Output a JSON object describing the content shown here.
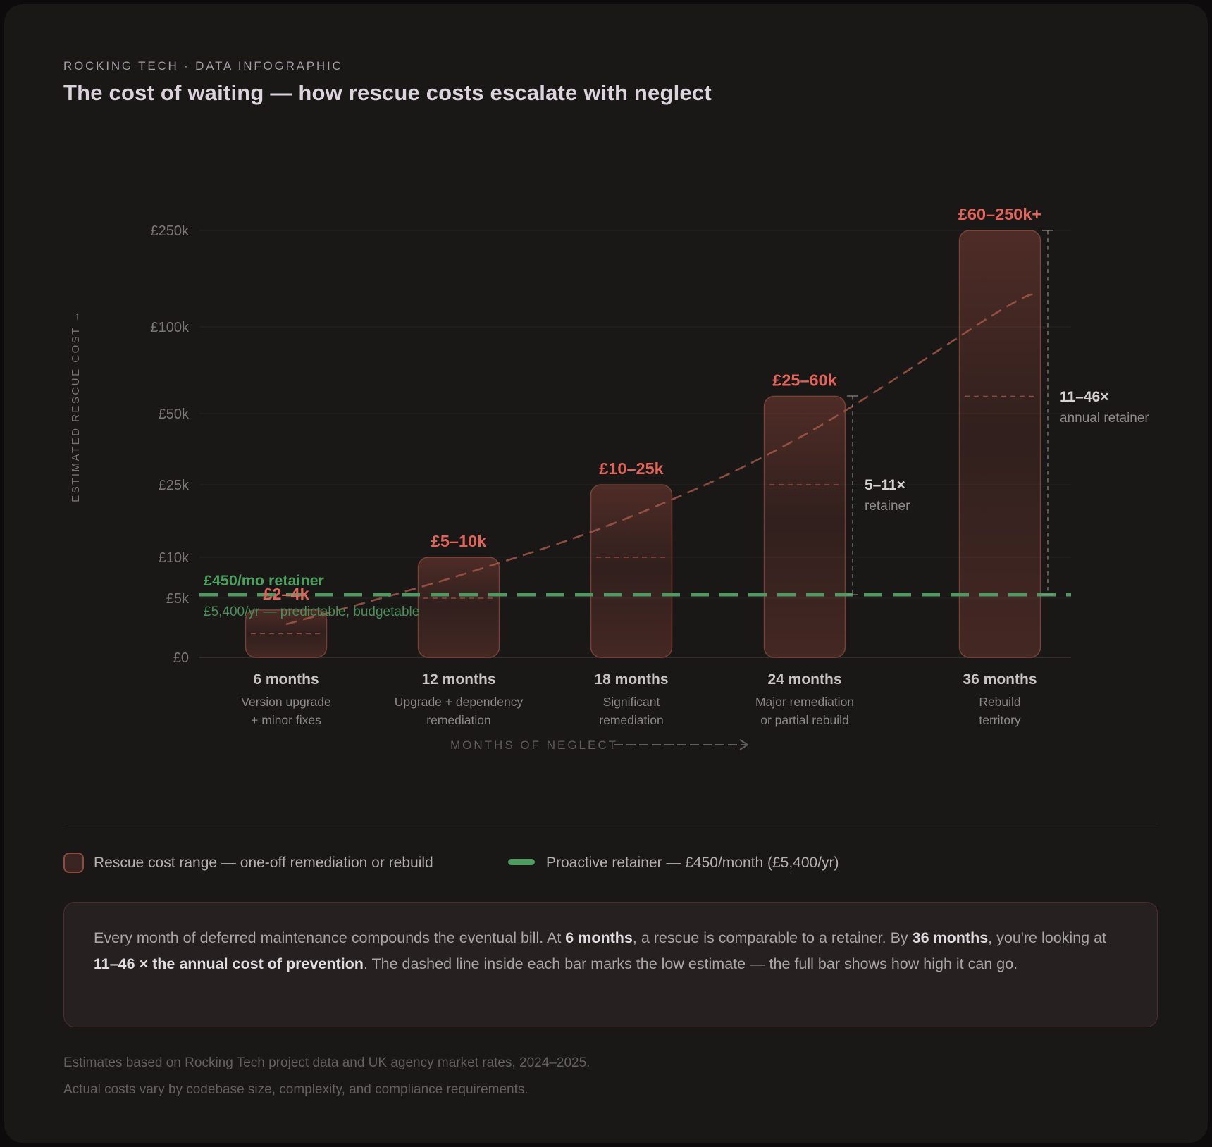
{
  "header": {
    "eyebrow": "ROCKING TECH · DATA INFOGRAPHIC",
    "title": "The cost of waiting — how rescue costs escalate with neglect"
  },
  "chart_data": {
    "type": "bar",
    "title": "The cost of waiting — how rescue costs escalate with neglect",
    "xlabel": "MONTHS OF NEGLECT",
    "ylabel": "ESTIMATED RESCUE COST →",
    "currency": "GBP",
    "ylim": [
      0,
      250000
    ],
    "y_scale": "custom-log-like",
    "y_ticks": [
      {
        "value": 0,
        "label": "£0"
      },
      {
        "value": 5000,
        "label": "£5k"
      },
      {
        "value": 10000,
        "label": "£10k"
      },
      {
        "value": 25000,
        "label": "£25k"
      },
      {
        "value": 50000,
        "label": "£50k"
      },
      {
        "value": 100000,
        "label": "£100k"
      },
      {
        "value": 250000,
        "label": "£250k"
      }
    ],
    "categories": [
      {
        "label": "6 months",
        "sublabel": [
          "Version upgrade",
          "+ minor fixes"
        ],
        "range_label": "£2–4k",
        "low": 2000,
        "high": 4000
      },
      {
        "label": "12 months",
        "sublabel": [
          "Upgrade + dependency",
          "remediation"
        ],
        "range_label": "£5–10k",
        "low": 5000,
        "high": 10000
      },
      {
        "label": "18 months",
        "sublabel": [
          "Significant",
          "remediation"
        ],
        "range_label": "£10–25k",
        "low": 10000,
        "high": 25000
      },
      {
        "label": "24 months",
        "sublabel": [
          "Major remediation",
          "or partial rebuild"
        ],
        "range_label": "£25–60k",
        "low": 25000,
        "high": 60000
      },
      {
        "label": "36 months",
        "sublabel": [
          "Rebuild",
          "territory"
        ],
        "range_label": "£60–250k+",
        "low": 60000,
        "high": 250000
      }
    ],
    "retainer_line": {
      "value": 5400,
      "label_bold": "£450/mo retainer",
      "label_sub": "£5,400/yr — predictable, budgetable"
    },
    "trend_values": [
      2800,
      7800,
      18500,
      42500,
      125000
    ],
    "trend_extension_value": 152000,
    "annotations": [
      {
        "category_index": 3,
        "from_value": 60000,
        "line1": "5–11×",
        "line2": "retainer"
      },
      {
        "category_index": 4,
        "from_value": 250000,
        "line1": "11–46×",
        "line2": "annual retainer"
      }
    ],
    "legend_position": "bottom",
    "grid": true,
    "colors": {
      "background": "#1a1717",
      "bar_fill": "#c95c4a",
      "bar_border": "#cf6a57",
      "range_label": "#e0645a",
      "retainer_green": "#4f9a61",
      "retainer_green_dim": "#4a8f59",
      "trend": "#a3574a",
      "grid": "#272323",
      "baseline": "#3a3535",
      "tick_text": "#7b7777",
      "cat_text": "#c8c4c4",
      "cat_sub_text": "#8b8787",
      "axis_title": "#615d5b",
      "annotation_line": "#9e9995",
      "annotation_text": "#d7d2d2",
      "annotation_sub": "#8d8987"
    }
  },
  "legend": {
    "rescue_label": "Rescue cost range — one-off remediation or rebuild",
    "retainer_label": "Proactive retainer — £450/month (£5,400/yr)"
  },
  "callout": {
    "segments": [
      {
        "t": "Every month of deferred maintenance compounds the eventual bill. At ",
        "b": false
      },
      {
        "t": "6 months",
        "b": true
      },
      {
        "t": ", a rescue is comparable to a retainer. By ",
        "b": false
      },
      {
        "t": "36 months",
        "b": true
      },
      {
        "t": ", you're looking at ",
        "b": false
      },
      {
        "t": "11–46 × the annual cost of prevention",
        "b": true
      },
      {
        "t": ". The dashed line inside each bar marks the low estimate — the full bar shows how high it can go.",
        "b": false
      }
    ]
  },
  "footer": {
    "line1": "Estimates based on Rocking Tech project data and UK agency market rates, 2024–2025.",
    "line2": "Actual costs vary by codebase size, complexity, and compliance requirements."
  }
}
